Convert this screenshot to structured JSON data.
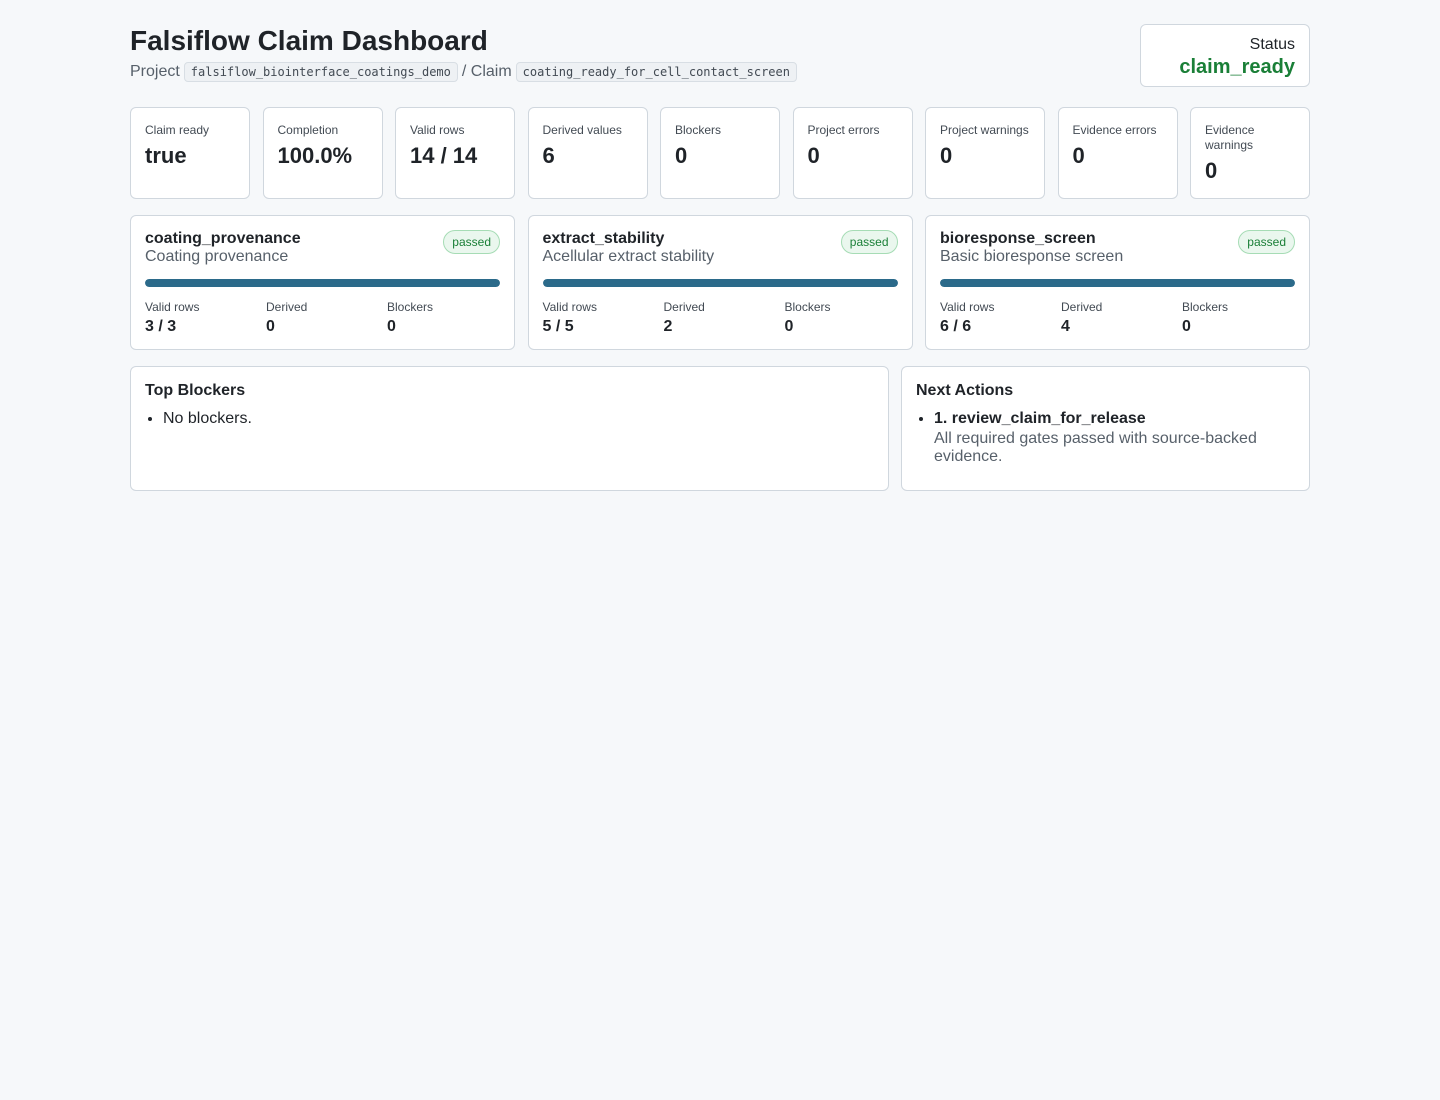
{
  "header": {
    "title": "Falsiflow Claim Dashboard",
    "project_prefix": "Project",
    "project_id": "falsiflow_biointerface_coatings_demo",
    "claim_prefix": "/ Claim",
    "claim_id": "coating_ready_for_cell_contact_screen"
  },
  "status": {
    "label": "Status",
    "value": "claim_ready",
    "color": "#1a7f37"
  },
  "metrics": [
    {
      "label": "Claim ready",
      "value": "true"
    },
    {
      "label": "Completion",
      "value": "100.0%"
    },
    {
      "label": "Valid rows",
      "value": "14 / 14"
    },
    {
      "label": "Derived values",
      "value": "6"
    },
    {
      "label": "Blockers",
      "value": "0"
    },
    {
      "label": "Project errors",
      "value": "0"
    },
    {
      "label": "Project warnings",
      "value": "0"
    },
    {
      "label": "Evidence errors",
      "value": "0"
    },
    {
      "label": "Evidence warnings",
      "value": "0"
    }
  ],
  "gates": [
    {
      "name": "coating_provenance",
      "description": "Coating provenance",
      "badge": "passed",
      "progress": 1.0,
      "stats": [
        {
          "label": "Valid rows",
          "value": "3 / 3"
        },
        {
          "label": "Derived",
          "value": "0"
        },
        {
          "label": "Blockers",
          "value": "0"
        }
      ]
    },
    {
      "name": "extract_stability",
      "description": "Acellular extract stability",
      "badge": "passed",
      "progress": 1.0,
      "stats": [
        {
          "label": "Valid rows",
          "value": "5 / 5"
        },
        {
          "label": "Derived",
          "value": "2"
        },
        {
          "label": "Blockers",
          "value": "0"
        }
      ]
    },
    {
      "name": "bioresponse_screen",
      "description": "Basic bioresponse screen",
      "badge": "passed",
      "progress": 1.0,
      "stats": [
        {
          "label": "Valid rows",
          "value": "6 / 6"
        },
        {
          "label": "Derived",
          "value": "4"
        },
        {
          "label": "Blockers",
          "value": "0"
        }
      ]
    }
  ],
  "top_blockers": {
    "title": "Top Blockers",
    "items": [
      "No blockers."
    ]
  },
  "next_actions": {
    "title": "Next Actions",
    "items": [
      {
        "name": "1. review_claim_for_release",
        "detail": "All required gates passed with source-backed evidence."
      }
    ]
  },
  "colors": {
    "accent": "#2b6a8a",
    "success": "#1a7f37"
  }
}
